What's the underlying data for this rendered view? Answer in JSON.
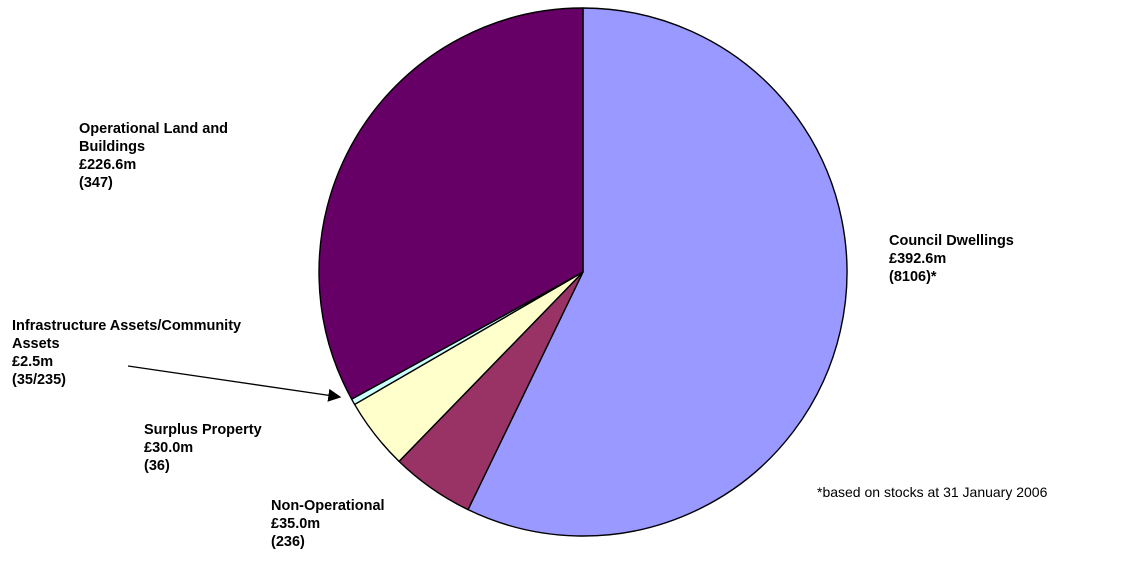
{
  "chart_data": {
    "type": "pie",
    "title": "",
    "start_angle_deg": 0,
    "direction": "clockwise",
    "slices": [
      {
        "key": "council",
        "lines": [
          "Council Dwellings",
          "£392.6m",
          "(8106)*"
        ],
        "value": 392.6,
        "count_label": "(8106)*",
        "color": "#9999ff"
      },
      {
        "key": "nonop",
        "lines": [
          "Non-Operational",
          "£35.0m",
          "(236)"
        ],
        "value": 35.0,
        "count_label": "(236)",
        "color": "#993366"
      },
      {
        "key": "surplus",
        "lines": [
          "Surplus Property",
          "£30.0m",
          "(36)"
        ],
        "value": 30.0,
        "count_label": "(36)",
        "color": "#ffffcc"
      },
      {
        "key": "infra",
        "lines": [
          "Infrastructure Assets/Community",
          "Assets",
          "£2.5m",
          "(35/235)"
        ],
        "value": 2.5,
        "count_label": "(35/235)",
        "color": "#ccffff"
      },
      {
        "key": "oplb",
        "lines": [
          "Operational Land and",
          "Buildings",
          "£226.6m",
          "(347)"
        ],
        "value": 226.6,
        "count_label": "(347)",
        "color": "#660066"
      }
    ],
    "footnote": "*based on stocks at 31 January 2006",
    "legend": "none"
  }
}
